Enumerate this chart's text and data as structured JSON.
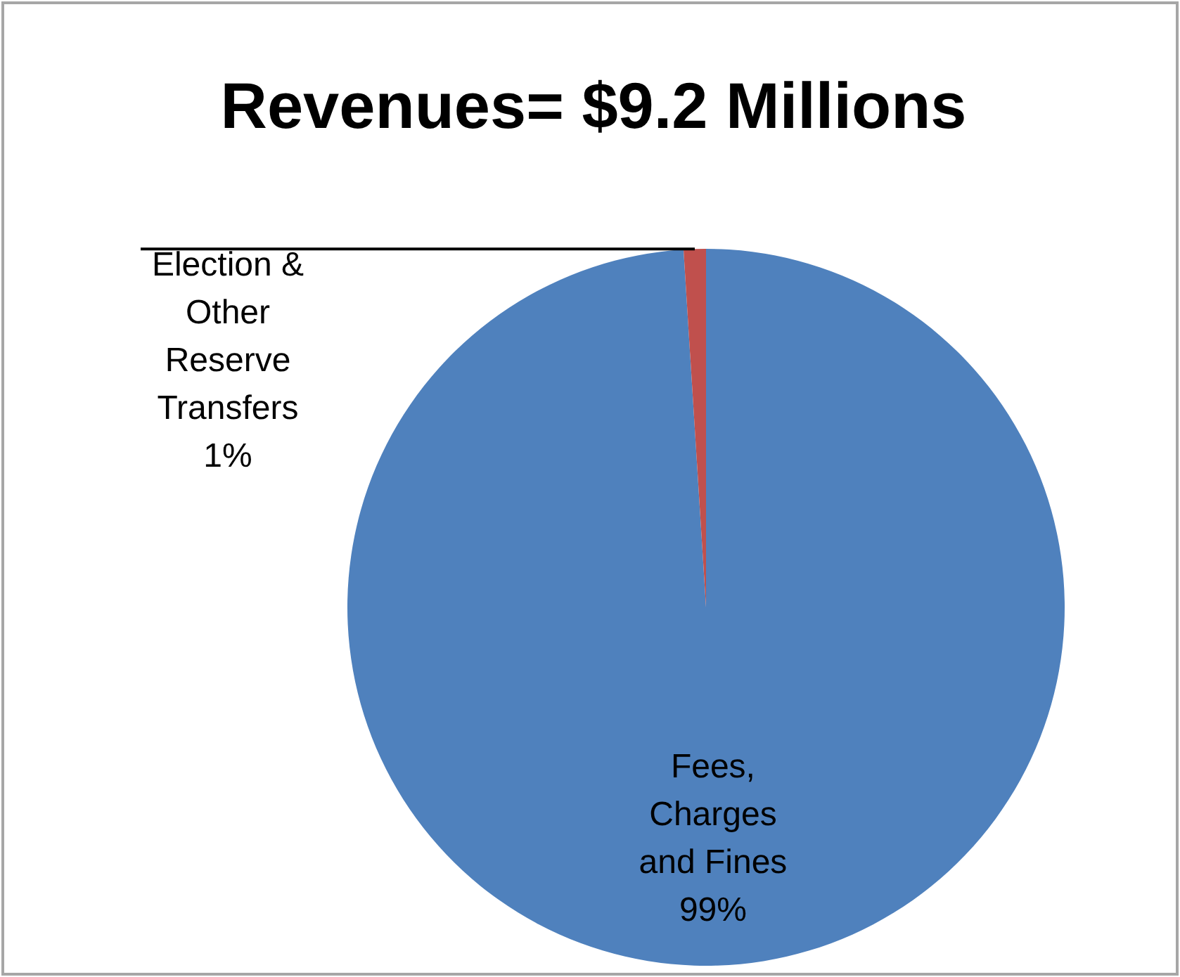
{
  "chart_data": {
    "type": "pie",
    "title": "Revenues= $9.2 Millions",
    "categories": [
      "Fees, Charges and Fines",
      "Election & Other Reserve Transfers"
    ],
    "values": [
      99,
      1
    ],
    "colors": [
      "#4f81bd",
      "#c0504d"
    ],
    "value_labels": [
      "99%",
      "1%"
    ]
  }
}
